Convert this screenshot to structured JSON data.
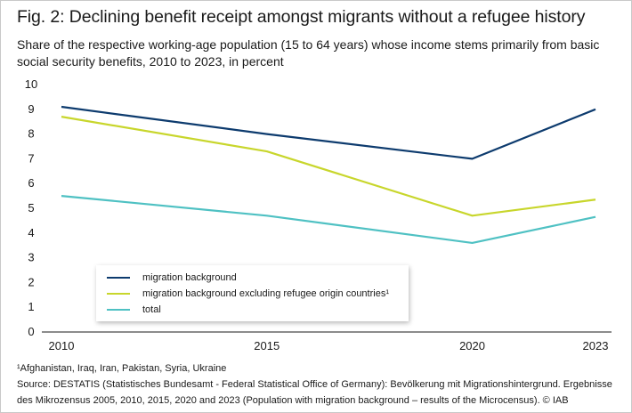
{
  "figure": {
    "title": "Fig. 2: Declining benefit receipt amongst migrants without a refugee history",
    "subtitle": "Share of the respective working-age population (15 to 64 years) whose income stems primarily from basic social security benefits, 2010 to 2023, in percent"
  },
  "chart_data": {
    "type": "line",
    "title": "Fig. 2: Declining benefit receipt amongst migrants without a refugee history",
    "subtitle": "Share of the respective working-age population (15 to 64 years) whose income stems primarily from basic social security benefits, 2010 to 2023, in percent",
    "xlabel": "",
    "ylabel": "percent",
    "x": [
      2010,
      2015,
      2020,
      2023
    ],
    "x_tick_labels": [
      "2010",
      "2015",
      "2020",
      "2023"
    ],
    "ylim": [
      0,
      10
    ],
    "y_ticks": [
      0,
      1,
      2,
      3,
      4,
      5,
      6,
      7,
      8,
      9,
      10
    ],
    "grid": false,
    "legend_position": "bottom-left",
    "series": [
      {
        "name": "migration background",
        "color": "#0d3b6e",
        "values": [
          9.1,
          8.0,
          7.0,
          9.0
        ]
      },
      {
        "name": "migration background excluding refugee origin countries¹",
        "color": "#c8d62c",
        "values": [
          8.7,
          7.3,
          4.7,
          5.35
        ]
      },
      {
        "name": "total",
        "color": "#4fc1c3",
        "values": [
          5.5,
          4.7,
          3.6,
          4.65
        ]
      }
    ]
  },
  "notes": {
    "footnote": "¹Afghanistan, Iraq, Iran, Pakistan, Syria, Ukraine",
    "source_line1": "Source: DESTATIS (Statistisches Bundesamt - Federal Statistical Office of Germany): Bevölkerung mit Migrationshintergrund. Ergebnisse",
    "source_line2": "des Mikrozensus 2005, 2010, 2015, 2020 and 2023 (Population with migration background – results of the Microcensus).  © IAB"
  }
}
